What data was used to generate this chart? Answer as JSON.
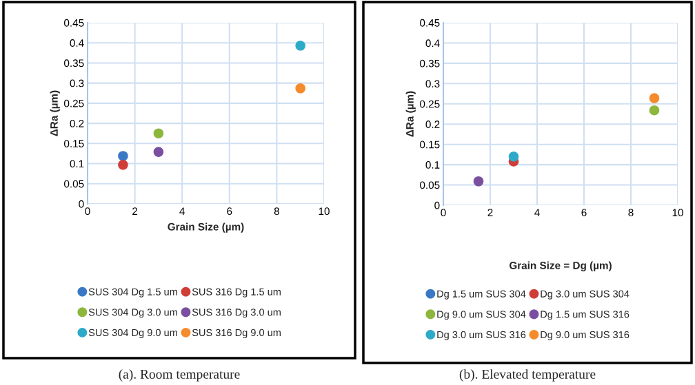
{
  "chart_data": [
    {
      "type": "scatter",
      "xlabel": "Grain Size (µm)",
      "ylabel": "ΔRa (µm)",
      "xlim": [
        0,
        10
      ],
      "xticks": [
        0,
        2,
        4,
        6,
        8,
        10
      ],
      "ylim": [
        0,
        0.45
      ],
      "yticks": [
        0,
        0.05,
        0.1,
        0.15,
        0.2,
        0.25,
        0.3,
        0.35,
        0.4,
        0.45
      ],
      "grid": true,
      "legend": "bottom",
      "marker": "circle",
      "annotations": [
        "(a). Room temperature"
      ],
      "series": [
        {
          "name": "SUS 304 Dg 1.5 um",
          "color": "#3a78c6",
          "x": [
            1.5
          ],
          "values": [
            0.119
          ]
        },
        {
          "name": "SUS 316 Dg 1.5 um",
          "color": "#d03d38",
          "x": [
            1.5
          ],
          "values": [
            0.097
          ]
        },
        {
          "name": "SUS 304 Dg 3.0 um",
          "color": "#8db63c",
          "x": [
            3.0
          ],
          "values": [
            0.175
          ]
        },
        {
          "name": "SUS 316 Dg 3.0 um",
          "color": "#7b4fa0",
          "x": [
            3.0
          ],
          "values": [
            0.129
          ]
        },
        {
          "name": "SUS 304 Dg 9.0 um",
          "color": "#2eaac9",
          "x": [
            9.0
          ],
          "values": [
            0.393
          ]
        },
        {
          "name": "SUS 316 Dg 9.0 um",
          "color": "#f58b2b",
          "x": [
            9.0
          ],
          "values": [
            0.287
          ]
        }
      ]
    },
    {
      "type": "scatter",
      "xlabel": "Grain Size = Dg (µm)",
      "ylabel": "ΔRa (µm)",
      "xlim": [
        0,
        10
      ],
      "xticks": [
        0,
        2,
        4,
        6,
        8,
        10
      ],
      "ylim": [
        0,
        0.45
      ],
      "yticks": [
        0,
        0.05,
        0.1,
        0.15,
        0.2,
        0.25,
        0.3,
        0.35,
        0.4,
        0.45
      ],
      "grid": true,
      "legend": "bottom",
      "marker": "circle",
      "annotations": [
        "(b). Elevated temperature"
      ],
      "series": [
        {
          "name": "Dg 1.5 um SUS 304",
          "color": "#3a78c6",
          "x": [
            null
          ],
          "values": [
            null
          ]
        },
        {
          "name": "Dg 3.0 um SUS 304",
          "color": "#d03d38",
          "x": [
            3.0
          ],
          "values": [
            0.108
          ]
        },
        {
          "name": "Dg 9.0 um SUS 304",
          "color": "#8db63c",
          "x": [
            9.0
          ],
          "values": [
            0.234
          ]
        },
        {
          "name": "Dg 1.5 um SUS 316",
          "color": "#7b4fa0",
          "x": [
            1.5
          ],
          "values": [
            0.059
          ]
        },
        {
          "name": "Dg 3.0 um SUS 316",
          "color": "#2eaac9",
          "x": [
            3.0
          ],
          "values": [
            0.12
          ]
        },
        {
          "name": "Dg 9.0 um SUS 316",
          "color": "#f58b2b",
          "x": [
            9.0
          ],
          "values": [
            0.264
          ]
        }
      ]
    }
  ]
}
